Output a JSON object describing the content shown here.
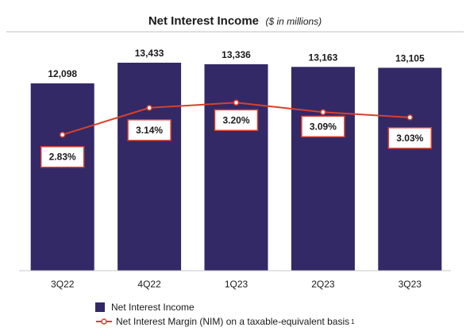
{
  "colors": {
    "bar": "#332966",
    "line": "#d7412d",
    "box_border": "#d7412d",
    "axis": "#c8c8c8",
    "rule": "#bfbfbf"
  },
  "legend": {
    "bar_label": "Net Interest Income",
    "line_label": "Net Interest Margin (NIM) on a taxable-equivalent basis",
    "line_footnote": "1"
  },
  "chart_data": {
    "type": "bar",
    "title": "Net Interest Income",
    "subtitle": "($ in millions)",
    "categories": [
      "3Q22",
      "4Q22",
      "1Q23",
      "2Q23",
      "3Q23"
    ],
    "series": [
      {
        "name": "Net Interest Income",
        "type": "bar",
        "values": [
          12098,
          13433,
          13336,
          13163,
          13105
        ],
        "value_labels": [
          "12,098",
          "13,433",
          "13,336",
          "13,163",
          "13,105"
        ]
      },
      {
        "name": "Net Interest Margin (NIM) on a taxable-equivalent basis",
        "type": "line",
        "values": [
          2.83,
          3.14,
          3.2,
          3.09,
          3.03
        ],
        "value_labels": [
          "2.83%",
          "3.14%",
          "3.20%",
          "3.09%",
          "3.03%"
        ]
      }
    ],
    "grid": false,
    "legend_position": "bottom"
  }
}
